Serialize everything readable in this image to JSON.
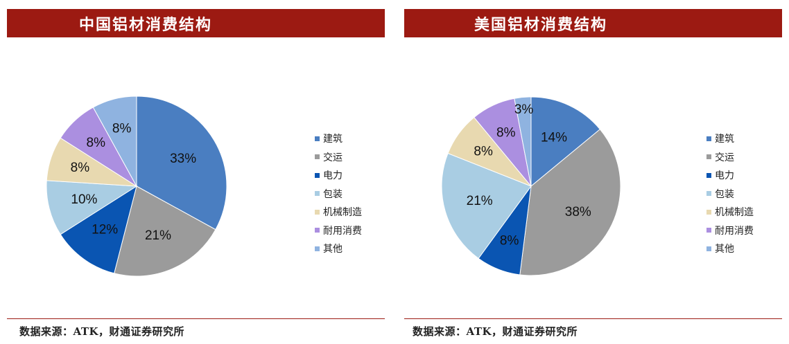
{
  "colors": {
    "title_bg": "#9c1a12",
    "series": [
      "#4a7ec1",
      "#9b9b9b",
      "#0a55b2",
      "#a9cde3",
      "#e8d9b0",
      "#ab8fe0",
      "#8fb3e0"
    ]
  },
  "chart_data": [
    {
      "type": "pie",
      "title": "中国铝材消费结构",
      "categories": [
        "建筑",
        "交运",
        "电力",
        "包装",
        "机械制造",
        "耐用消费",
        "其他"
      ],
      "values": [
        33,
        21,
        12,
        10,
        8,
        8,
        8
      ],
      "data_labels": [
        "33%",
        "21%",
        "12%",
        "10%",
        "8%",
        "8%",
        "8%"
      ],
      "legend": "right",
      "source": "数据来源：ATK，财通证券研究所"
    },
    {
      "type": "pie",
      "title": "美国铝材消费结构",
      "categories": [
        "建筑",
        "交运",
        "电力",
        "包装",
        "机械制造",
        "耐用消费",
        "其他"
      ],
      "values": [
        14,
        38,
        8,
        21,
        8,
        8,
        3
      ],
      "data_labels": [
        "14%",
        "38%",
        "8%",
        "21%",
        "8%",
        "8%",
        "3%"
      ],
      "legend": "right",
      "source": "数据来源：ATK，财通证券研究所"
    }
  ]
}
